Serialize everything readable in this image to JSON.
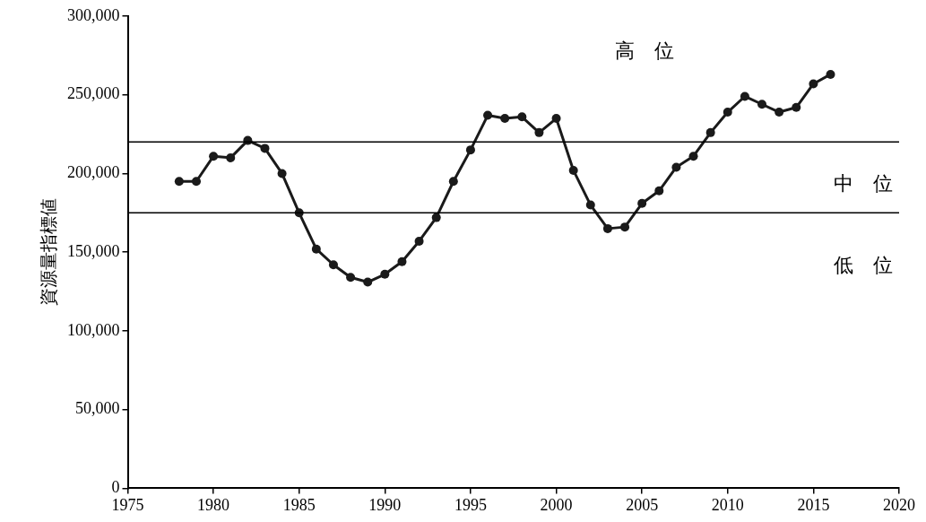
{
  "chart_data": {
    "type": "line",
    "ylabel": "資源量指標値",
    "x": [
      1978,
      1979,
      1980,
      1981,
      1982,
      1983,
      1984,
      1985,
      1986,
      1987,
      1988,
      1989,
      1990,
      1991,
      1992,
      1993,
      1994,
      1995,
      1996,
      1997,
      1998,
      1999,
      2000,
      2001,
      2002,
      2003,
      2004,
      2005,
      2006,
      2007,
      2008,
      2009,
      2010,
      2011,
      2012,
      2013,
      2014,
      2015,
      2016
    ],
    "series": [
      {
        "color": "#1a1a1a",
        "values": [
          195000,
          195000,
          211000,
          210000,
          221000,
          216000,
          200000,
          175000,
          152000,
          142000,
          134000,
          131000,
          136000,
          144000,
          157000,
          172000,
          195000,
          215000,
          237000,
          235000,
          236000,
          226000,
          235000,
          202000,
          180000,
          165000,
          166000,
          181000,
          189000,
          204000,
          211000,
          226000,
          239000,
          249000,
          244000,
          239000,
          242000,
          257000,
          263000
        ]
      }
    ],
    "xlim": [
      1975,
      2020
    ],
    "xticks": [
      1975,
      1980,
      1985,
      1990,
      1995,
      2000,
      2005,
      2010,
      2015,
      2020
    ],
    "ylim": [
      0,
      300000
    ],
    "yticks": [
      0,
      {
        "value": 50000,
        "label": "50,000"
      },
      {
        "value": 100000,
        "label": "100,000"
      },
      {
        "value": 150000,
        "label": "150,000"
      },
      {
        "value": 200000,
        "label": "200,000"
      },
      {
        "value": 250000,
        "label": "250,000"
      },
      {
        "value": 300000,
        "label": "300,000"
      }
    ],
    "ref_lines": [
      {
        "axis": "y",
        "value": 220000,
        "color": "#000000"
      },
      {
        "axis": "y",
        "value": 175000,
        "color": "#000000"
      }
    ],
    "annotations": [
      "高　位",
      "中　位",
      "低　位"
    ],
    "marker": "circle",
    "line_style": "solid",
    "grid": false,
    "legend": false
  }
}
